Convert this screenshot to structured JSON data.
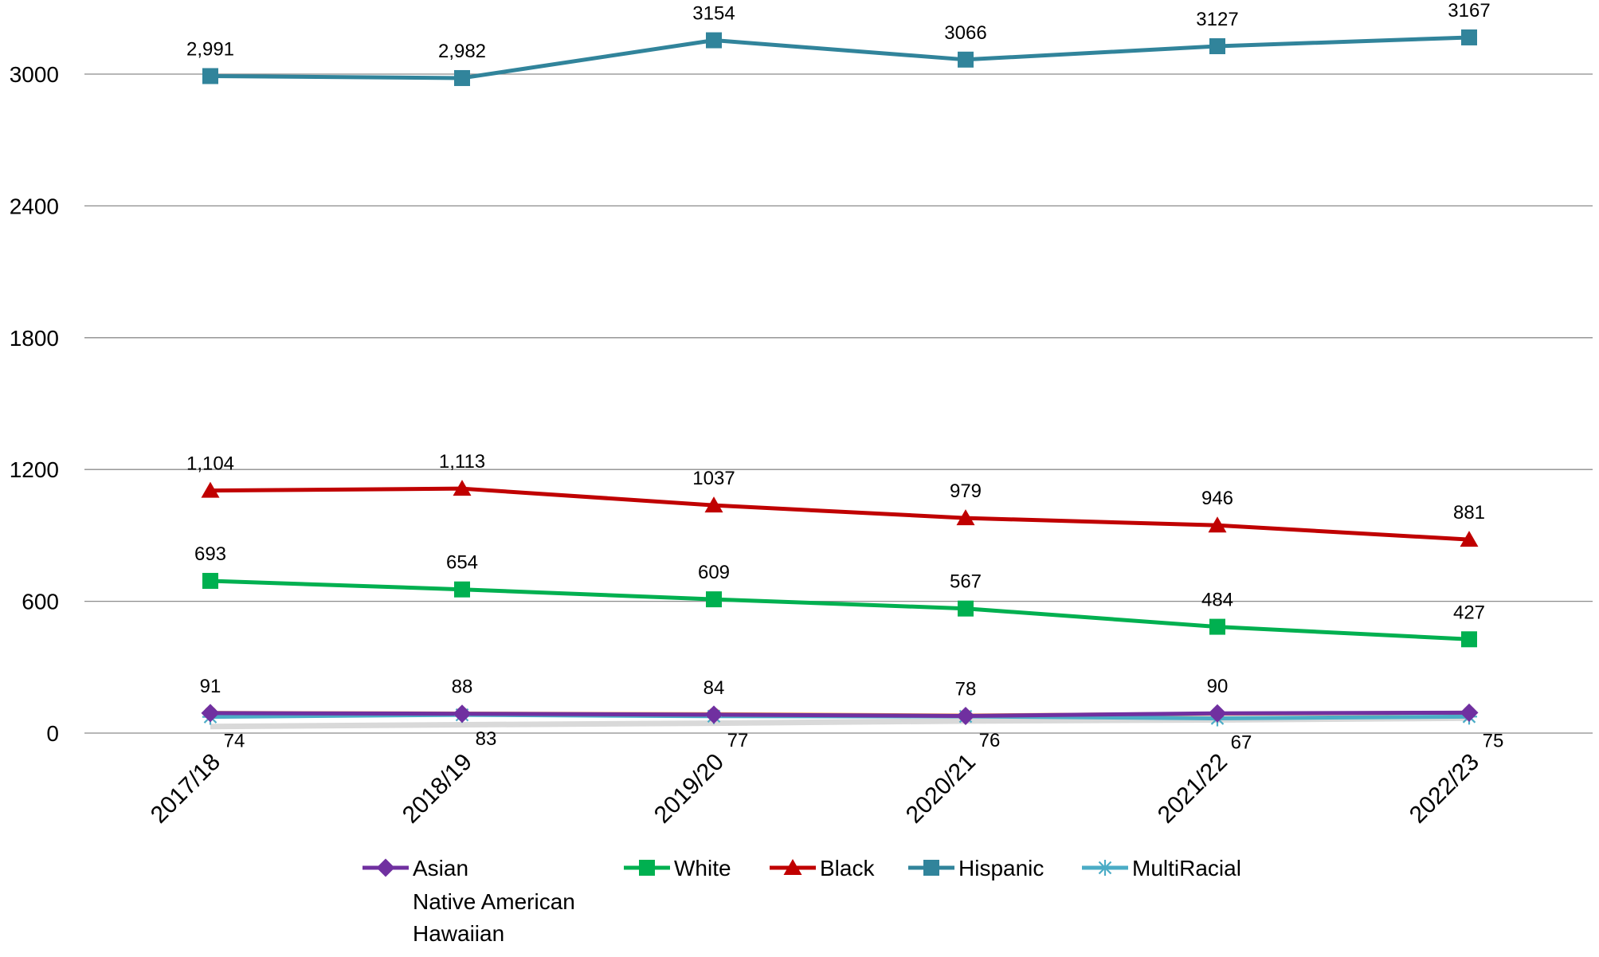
{
  "chart_data": {
    "type": "line",
    "title": "",
    "xlabel": "",
    "ylabel": "",
    "categories": [
      "2017/18",
      "2018/19",
      "2019/20",
      "2020/21",
      "2021/22",
      "2022/23"
    ],
    "y_ticks": [
      "0",
      "600",
      "1200",
      "1800",
      "2400",
      "3000"
    ],
    "y_tick_values": [
      0,
      600,
      1200,
      1800,
      2400,
      3000
    ],
    "ylim": [
      0,
      3200
    ],
    "grid": "horizontal",
    "legend_position": "bottom",
    "series": [
      {
        "name": "Asian",
        "color": "#7030A0",
        "marker": "diamond",
        "values": [
          91,
          88,
          84,
          78,
          90,
          93
        ],
        "labels": [
          "91",
          "88",
          "84",
          "78",
          "90",
          ""
        ],
        "label_pos": "above"
      },
      {
        "name": "White",
        "color": "#00B050",
        "marker": "square",
        "values": [
          693,
          654,
          609,
          567,
          484,
          427
        ],
        "labels": [
          "693",
          "654",
          "609",
          "567",
          "484",
          "427"
        ],
        "label_pos": "above"
      },
      {
        "name": "Black",
        "color": "#C00000",
        "marker": "triangle",
        "values": [
          1104,
          1113,
          1037,
          979,
          946,
          881
        ],
        "labels": [
          "1,104",
          "1,113",
          "1037",
          "979",
          "946",
          "881"
        ],
        "label_pos": "above"
      },
      {
        "name": "Hispanic",
        "color": "#31849B",
        "marker": "square",
        "values": [
          2991,
          2982,
          3154,
          3066,
          3127,
          3167
        ],
        "labels": [
          "2,991",
          "2,982",
          "3154",
          "3066",
          "3127",
          "3167"
        ],
        "label_pos": "above"
      },
      {
        "name": "MultiRacial",
        "color": "#4BACC6",
        "marker": "star",
        "values": [
          74,
          83,
          77,
          76,
          67,
          75
        ],
        "labels": [
          "74",
          "83",
          "77",
          "76",
          "67",
          "75"
        ],
        "label_pos": "below"
      },
      {
        "name": "Native American",
        "color": "#D9D9D9",
        "marker": "none",
        "values": [
          30,
          38,
          45,
          55,
          60,
          68
        ],
        "labels": [
          "",
          "",
          "",
          "",
          "",
          ""
        ],
        "label_pos": "none"
      },
      {
        "name": "Hawaiian",
        "color": "#F79646",
        "marker": "circle",
        "values": [
          92,
          89,
          86,
          80,
          88,
          93
        ],
        "labels": [
          "",
          "",
          "",
          "",
          "",
          ""
        ],
        "label_pos": "none"
      }
    ],
    "legend": [
      {
        "name": "Asian",
        "color": "#7030A0",
        "marker": "diamond"
      },
      {
        "name": "White",
        "color": "#00B050",
        "marker": "square"
      },
      {
        "name": "Black",
        "color": "#C00000",
        "marker": "triangle"
      },
      {
        "name": "Hispanic",
        "color": "#31849B",
        "marker": "square"
      },
      {
        "name": "MultiRacial",
        "color": "#4BACC6",
        "marker": "star"
      },
      {
        "name": "Native American",
        "color": "",
        "marker": "none"
      },
      {
        "name": "Hawaiian",
        "color": "",
        "marker": "none"
      }
    ]
  }
}
